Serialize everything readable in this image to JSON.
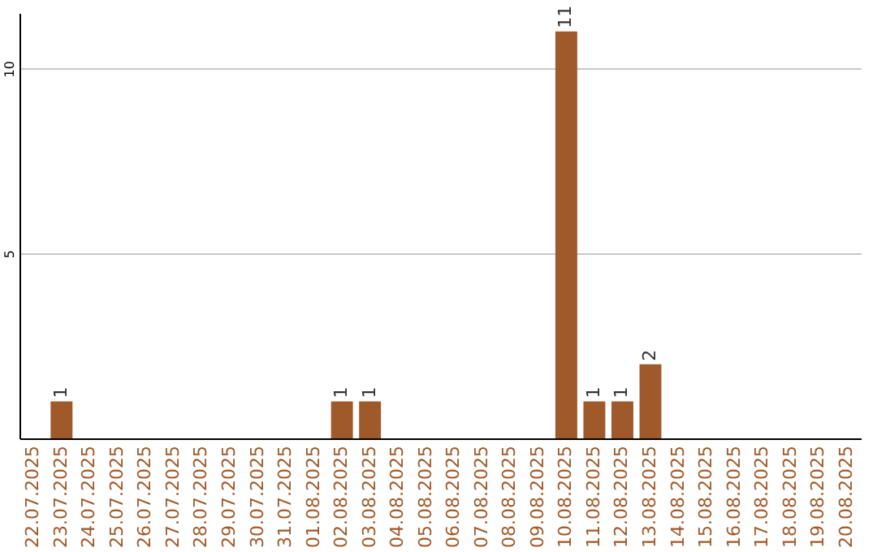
{
  "chart_data": {
    "type": "bar",
    "categories": [
      "22.07.2025",
      "23.07.2025",
      "24.07.2025",
      "25.07.2025",
      "26.07.2025",
      "27.07.2025",
      "28.07.2025",
      "29.07.2025",
      "30.07.2025",
      "31.07.2025",
      "01.08.2025",
      "02.08.2025",
      "03.08.2025",
      "04.08.2025",
      "05.08.2025",
      "06.08.2025",
      "07.08.2025",
      "08.08.2025",
      "09.08.2025",
      "10.08.2025",
      "11.08.2025",
      "12.08.2025",
      "13.08.2025",
      "14.08.2025",
      "15.08.2025",
      "16.08.2025",
      "17.08.2025",
      "18.08.2025",
      "19.08.2025",
      "20.08.2025"
    ],
    "values": [
      0,
      1,
      0,
      0,
      0,
      0,
      0,
      0,
      0,
      0,
      0,
      1,
      1,
      0,
      0,
      0,
      0,
      0,
      0,
      11,
      1,
      1,
      2,
      0,
      0,
      0,
      0,
      0,
      0,
      0
    ],
    "value_labels": [
      null,
      "1",
      null,
      null,
      null,
      null,
      null,
      null,
      null,
      null,
      null,
      "1",
      "1",
      null,
      null,
      null,
      null,
      null,
      null,
      "11",
      "1",
      "1",
      "2",
      null,
      null,
      null,
      null,
      null,
      null,
      null
    ],
    "color": "#a0592a",
    "ylim": [
      0,
      11.5
    ],
    "yticks": [
      5,
      10
    ],
    "grid": "y"
  }
}
